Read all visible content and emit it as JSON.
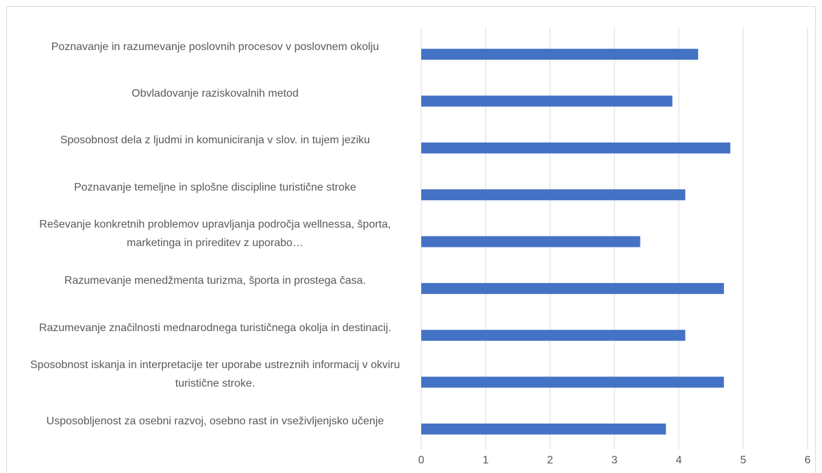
{
  "chart_data": {
    "type": "bar",
    "orientation": "horizontal",
    "categories": [
      "Poznavanje in razumevanje poslovnih procesov v poslovnem okolju",
      "Obvladovanje raziskovalnih metod",
      "Sposobnost dela z ljudmi in komuniciranja v slov. in tujem jeziku",
      "Poznavanje temeljne in splošne discipline turistične stroke",
      "Reševanje konkretnih problemov upravljanja področja wellnessa, športa, marketinga in prireditev z uporabo…",
      "Razumevanje menedžmenta turizma, športa in prostega časa.",
      "Razumevanje značilnosti mednarodnega turističnega okolja in destinacij.",
      "Sposobnost iskanja in interpretacije ter uporabe ustreznih informacij v okviru turistične stroke.",
      "Usposobljenost za osebni razvoj, osebno rast in vseživljenjsko učenje"
    ],
    "values": [
      4.3,
      3.9,
      4.8,
      4.1,
      3.4,
      4.7,
      4.1,
      4.7,
      3.8
    ],
    "color": "#4472c4",
    "xlim": [
      0,
      6
    ],
    "xticks": [
      0,
      1,
      2,
      3,
      4,
      5,
      6
    ],
    "grid": true
  }
}
